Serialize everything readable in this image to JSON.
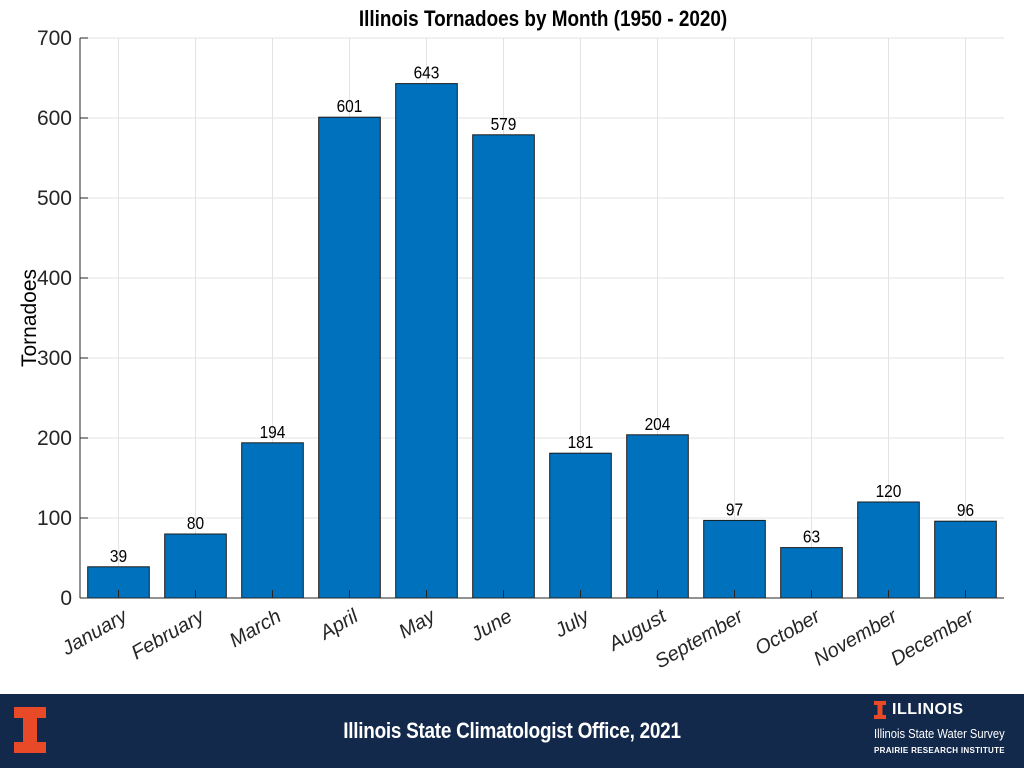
{
  "chart_data": {
    "type": "bar",
    "title": "Illinois Tornadoes by Month (1950 - 2020)",
    "xlabel": "",
    "ylabel": "Tornadoes",
    "categories": [
      "January",
      "February",
      "March",
      "April",
      "May",
      "June",
      "July",
      "August",
      "September",
      "October",
      "November",
      "December"
    ],
    "values": [
      39,
      80,
      194,
      601,
      643,
      579,
      181,
      204,
      97,
      63,
      120,
      96
    ],
    "data_labels": [
      "39",
      "80",
      "194",
      "601",
      "643",
      "579",
      "181",
      "204",
      "97",
      "63",
      "120",
      "96"
    ],
    "ylim": [
      0,
      700
    ],
    "yticks": [
      0,
      100,
      200,
      300,
      400,
      500,
      600,
      700
    ],
    "ytick_labels": [
      "0",
      "100",
      "200",
      "300",
      "400",
      "500",
      "600",
      "700"
    ],
    "bar_color": "#0072bd",
    "grid": true,
    "legend": null
  },
  "footer": {
    "credit": "Illinois State Climatologist Office, 2021",
    "brand_name": "ILLINOIS",
    "brand_org": "Illinois State Water Survey",
    "brand_institute": "PRAIRIE RESEARCH INSTITUTE",
    "background_color": "#13294b",
    "accent_color": "#e84a27"
  }
}
